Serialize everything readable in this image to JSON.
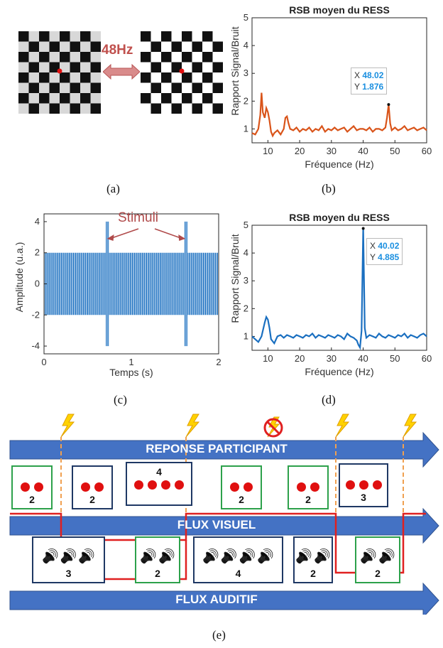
{
  "panel_a": {
    "frequency_label": "48Hz",
    "caption": "(a)"
  },
  "panel_b": {
    "caption": "(b)",
    "chart_data": {
      "type": "line",
      "title": "RSB moyen du RESS",
      "xlabel": "Fréquence (Hz)",
      "ylabel": "Rapport Signal/Bruit",
      "xlim": [
        5,
        60
      ],
      "ylim": [
        0.5,
        5
      ],
      "xticks": [
        10,
        20,
        30,
        40,
        50,
        60
      ],
      "yticks": [
        1,
        2,
        3,
        4,
        5
      ],
      "color": "#d9541a",
      "x": [
        5,
        6,
        7,
        7.6,
        8,
        8.4,
        9,
        9.5,
        10,
        10.5,
        11,
        11.5,
        12,
        13,
        14,
        15,
        15.5,
        16,
        16.5,
        17,
        18,
        19,
        20,
        21,
        22,
        23,
        24,
        25,
        26,
        27,
        28,
        29,
        30,
        31,
        32,
        33,
        34,
        35,
        36,
        37,
        38,
        39,
        40,
        41,
        42,
        43,
        44,
        45,
        46,
        47,
        47.5,
        48.02,
        48.5,
        49,
        50,
        51,
        52,
        53,
        54,
        55,
        56,
        57,
        58,
        59,
        60
      ],
      "y": [
        0.85,
        0.8,
        1.0,
        1.5,
        2.3,
        1.6,
        1.4,
        1.75,
        1.6,
        1.3,
        0.9,
        0.75,
        0.85,
        0.95,
        0.8,
        1.0,
        1.4,
        1.45,
        1.2,
        1.0,
        0.95,
        1.05,
        0.9,
        1.0,
        0.95,
        1.05,
        0.9,
        1.0,
        0.95,
        1.1,
        0.9,
        1.0,
        0.95,
        1.05,
        0.95,
        1.0,
        1.05,
        0.9,
        1.0,
        1.1,
        0.95,
        1.0,
        1.0,
        0.95,
        1.05,
        0.9,
        1.0,
        1.0,
        0.95,
        1.05,
        1.4,
        1.876,
        1.2,
        0.95,
        1.05,
        0.95,
        1.0,
        1.1,
        0.95,
        1.0,
        1.05,
        0.95,
        1.0,
        1.05,
        0.95
      ],
      "datatip": {
        "x_label": "X",
        "x_value": "48.02",
        "y_label": "Y",
        "y_value": "1.876",
        "x": 48.02,
        "y": 1.876
      }
    }
  },
  "panel_c": {
    "caption": "(c)",
    "stimuli_label": "Stimuli",
    "chart_data": {
      "type": "line",
      "xlabel": "Temps (s)",
      "ylabel": "Amplitude (u.a.)",
      "xlim": [
        0,
        2
      ],
      "ylim": [
        -4.5,
        4.5
      ],
      "xticks": [
        0,
        1,
        2
      ],
      "yticks": [
        -4,
        -2,
        0,
        2,
        4
      ],
      "color": "#1a6fc0",
      "base_amplitude": 2,
      "stimulus_amplitude": 4,
      "stimuli_times": [
        0.72,
        1.62
      ],
      "oscillation_hz": 40
    }
  },
  "panel_d": {
    "caption": "(d)",
    "chart_data": {
      "type": "line",
      "title": "RSB moyen du RESS",
      "xlabel": "Fréquence (Hz)",
      "ylabel": "Rapport Signal/Bruit",
      "xlim": [
        5,
        60
      ],
      "ylim": [
        0.5,
        5
      ],
      "xticks": [
        10,
        20,
        30,
        40,
        50,
        60
      ],
      "yticks": [
        1,
        2,
        3,
        4,
        5
      ],
      "color": "#1a6fc0",
      "x": [
        5,
        6,
        7,
        8,
        9,
        9.5,
        10,
        10.5,
        11,
        12,
        13,
        14,
        15,
        16,
        17,
        18,
        19,
        20,
        21,
        22,
        23,
        24,
        25,
        26,
        27,
        28,
        29,
        30,
        31,
        32,
        33,
        34,
        35,
        36,
        37,
        38,
        38.5,
        39,
        39.5,
        40.02,
        40.5,
        41,
        42,
        43,
        44,
        45,
        46,
        47,
        48,
        49,
        50,
        51,
        52,
        53,
        54,
        55,
        56,
        57,
        58,
        59,
        60
      ],
      "y": [
        1.0,
        0.9,
        0.8,
        1.0,
        1.5,
        1.7,
        1.6,
        1.3,
        0.9,
        0.75,
        1.0,
        1.05,
        0.95,
        1.05,
        1.0,
        0.95,
        1.05,
        1.0,
        0.95,
        1.05,
        1.0,
        1.1,
        0.95,
        1.05,
        1.0,
        0.95,
        1.05,
        1.0,
        0.95,
        1.05,
        1.0,
        0.9,
        1.1,
        1.0,
        0.95,
        0.85,
        0.7,
        0.6,
        1.2,
        4.885,
        1.3,
        0.95,
        1.05,
        1.0,
        0.95,
        1.1,
        1.0,
        0.95,
        1.05,
        1.0,
        0.95,
        1.05,
        1.0,
        1.1,
        0.95,
        1.05,
        1.0,
        0.95,
        1.05,
        1.1,
        1.0
      ],
      "datatip": {
        "x_label": "X",
        "x_value": "40.02",
        "y_label": "Y",
        "y_value": "4.885",
        "x": 40.02,
        "y": 4.885
      }
    }
  },
  "panel_e": {
    "caption": "(e)",
    "arrows": {
      "response": "REPONSE PARTICIPANT",
      "visual": "FLUX VISUEL",
      "auditory": "FLUX AUDITIF"
    },
    "visual_boxes": [
      {
        "count": "2",
        "frame": "green"
      },
      {
        "count": "2",
        "frame": "blue"
      },
      {
        "count": "4",
        "frame": "blue"
      },
      {
        "count": "2",
        "frame": "green"
      },
      {
        "count": "2",
        "frame": "green"
      },
      {
        "count": "3",
        "frame": "blue"
      }
    ],
    "auditory_boxes": [
      {
        "count": "3",
        "frame": "blue"
      },
      {
        "count": "2",
        "frame": "green"
      },
      {
        "count": "4",
        "frame": "blue"
      },
      {
        "count": "2",
        "frame": "blue"
      },
      {
        "count": "2",
        "frame": "green"
      }
    ],
    "colors": {
      "arrow": "#4472c4",
      "match": "#2da14b",
      "nomatch": "#1f3864",
      "dot": "#e01010",
      "path": "#e02020",
      "bolt": "#ffd200"
    }
  }
}
